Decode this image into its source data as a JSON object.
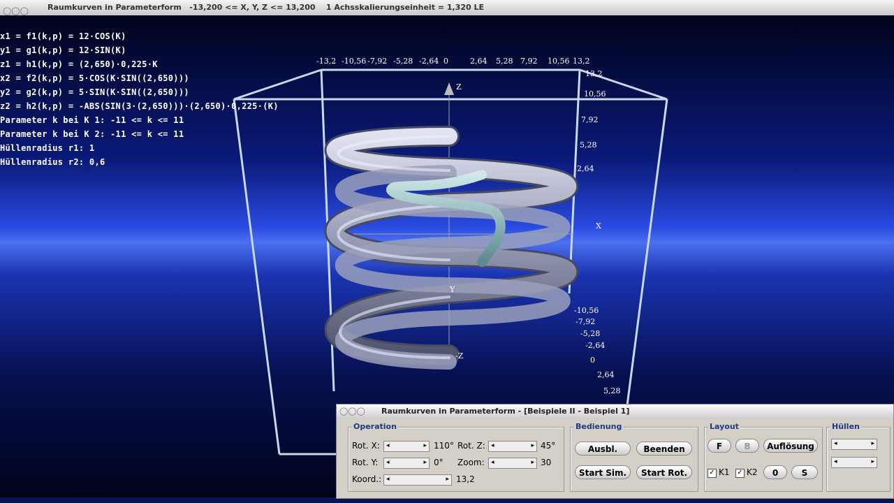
{
  "window_title": "Raumkurven in Parameterform   -13,200 <= X, Y, Z <= 13,200    1 Achsskalierungseinheit = 1,320 LE",
  "formulas": [
    "x1 = f1(k,p) = 12·COS(K)",
    "y1 = g1(k,p) = 12·SIN(K)",
    "z1 = h1(k,p) = (2,650)·0,225·K",
    "x2 = f2(k,p) = 5·COS(K·SIN((2,650)))",
    "y2 = g2(k,p) = 5·SIN(K·SIN((2,650)))",
    "z2 = h2(k,p) = -ABS(SIN(3·(2,650)))·(2,650)·0,225·(K)",
    "Parameter k bei K 1: -11 <= k <= 11",
    "Parameter k bei K 2: -11 <= k <= 11",
    "Hüllenradius r1: 1",
    "Hüllenradius r2: 0,6"
  ],
  "axis_labels": {
    "top": [
      "-13,2",
      "-10,56",
      "-7,92",
      "-5,28",
      "-2,64",
      "0",
      "2,64",
      "5,28",
      "7,92",
      "10,56",
      "13,2"
    ],
    "right_upper": [
      "13,2",
      "10,56",
      "7,92",
      "5,28",
      "2,64"
    ],
    "right_lower": [
      "-10,56",
      "-7,92",
      "-5,28",
      "-2,64",
      "0",
      "2,64",
      "5,28"
    ],
    "z": "Z",
    "x": "X",
    "y": "Y",
    "neg_z": "-Z"
  },
  "dialog": {
    "title": "Raumkurven in Parameterform - [Beispiele II - Beispiel 1]",
    "operation": {
      "title": "Operation",
      "rot_x": "Rot. X:",
      "rot_x_value": "110°",
      "rot_z": "Rot. Z:",
      "rot_z_value": "45°",
      "rot_y": "Rot. Y:",
      "rot_y_value": "0°",
      "zoom": "Zoom:",
      "zoom_value": "30",
      "koord": "Koord.:",
      "koord_value": "13,2"
    },
    "bedienung": {
      "title": "Bedienung",
      "ausbl": "Ausbl.",
      "beenden": "Beenden",
      "start_sim": "Start Sim.",
      "start_rot": "Start Rot."
    },
    "layout": {
      "title": "Layout",
      "f": "F",
      "b": "B",
      "aufloesung": "Auflösung",
      "k1": "K1",
      "k2": "K2",
      "null": "0",
      "s": "S"
    },
    "huellen": {
      "title": "Hüllen"
    }
  }
}
